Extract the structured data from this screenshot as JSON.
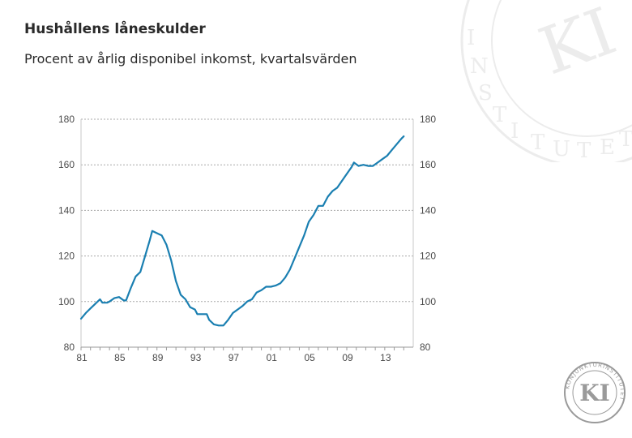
{
  "title": "Hushållens låneskulder",
  "subtitle": "Procent av årlig disponibel inkomst, kvartalsvärden",
  "colors": {
    "line": "#1a7fb1",
    "grid": "#a8a8a8",
    "watermark": "#ececec",
    "logo": "#9a9a9a"
  },
  "logo": {
    "monogram": "KI",
    "ring_text": "KONJUNKTURINSTITUTET"
  },
  "chart_data": {
    "type": "line",
    "title": "Hushållens låneskulder",
    "subtitle": "Procent av årlig disponibel inkomst, kvartalsvärden",
    "xlabel": "",
    "ylabel": "",
    "ylim": [
      80,
      180
    ],
    "xlim": [
      1981.0,
      2016.0
    ],
    "grid": true,
    "legend": "none",
    "y_ticks_left": [
      "180",
      "160",
      "140",
      "120",
      "100",
      "80"
    ],
    "y_ticks_right": [
      "180",
      "160",
      "140",
      "120",
      "100",
      "80"
    ],
    "x_ticks": [
      "81",
      "85",
      "89",
      "93",
      "97",
      "01",
      "05",
      "09",
      "13"
    ],
    "series": [
      {
        "values": [
          [
            1981.0,
            92.5
          ],
          [
            1981.5,
            95
          ],
          [
            1982.0,
            97
          ],
          [
            1982.5,
            99
          ],
          [
            1983.0,
            101
          ],
          [
            1983.25,
            99.5
          ],
          [
            1983.75,
            99.5
          ],
          [
            1984.0,
            100
          ],
          [
            1984.5,
            101.5
          ],
          [
            1985.0,
            102
          ],
          [
            1985.5,
            100.5
          ],
          [
            1985.75,
            100.5
          ],
          [
            1986.25,
            106
          ],
          [
            1986.75,
            111
          ],
          [
            1987.25,
            113
          ],
          [
            1987.75,
            120
          ],
          [
            1988.25,
            127
          ],
          [
            1988.5,
            131
          ],
          [
            1989.0,
            130
          ],
          [
            1989.5,
            129
          ],
          [
            1990.0,
            125
          ],
          [
            1990.5,
            118
          ],
          [
            1991.0,
            109
          ],
          [
            1991.5,
            103
          ],
          [
            1992.0,
            101
          ],
          [
            1992.5,
            97.5
          ],
          [
            1993.0,
            96.5
          ],
          [
            1993.25,
            94.5
          ],
          [
            1993.75,
            94.5
          ],
          [
            1994.25,
            94.5
          ],
          [
            1994.5,
            92
          ],
          [
            1995.0,
            90
          ],
          [
            1995.5,
            89.5
          ],
          [
            1996.0,
            89.5
          ],
          [
            1996.5,
            92
          ],
          [
            1997.0,
            95
          ],
          [
            1997.5,
            96.5
          ],
          [
            1998.0,
            98
          ],
          [
            1998.5,
            100
          ],
          [
            1999.0,
            101
          ],
          [
            1999.5,
            104
          ],
          [
            2000.0,
            105
          ],
          [
            2000.5,
            106.5
          ],
          [
            2001.0,
            106.5
          ],
          [
            2001.5,
            107
          ],
          [
            2002.0,
            108
          ],
          [
            2002.5,
            110.5
          ],
          [
            2003.0,
            114
          ],
          [
            2003.5,
            119
          ],
          [
            2004.0,
            124
          ],
          [
            2004.5,
            129
          ],
          [
            2005.0,
            135
          ],
          [
            2005.5,
            138
          ],
          [
            2006.0,
            142
          ],
          [
            2006.5,
            142
          ],
          [
            2007.0,
            146
          ],
          [
            2007.5,
            148.5
          ],
          [
            2008.0,
            150
          ],
          [
            2008.5,
            153
          ],
          [
            2009.0,
            156
          ],
          [
            2009.5,
            159
          ],
          [
            2009.75,
            161
          ],
          [
            2010.25,
            159.5
          ],
          [
            2010.75,
            160
          ],
          [
            2011.25,
            159.5
          ],
          [
            2011.75,
            159.5
          ],
          [
            2012.25,
            161
          ],
          [
            2012.75,
            162.5
          ],
          [
            2013.25,
            164
          ],
          [
            2013.75,
            166.5
          ],
          [
            2014.25,
            169
          ],
          [
            2014.75,
            171.5
          ],
          [
            2015.0,
            172.5
          ]
        ]
      }
    ]
  }
}
